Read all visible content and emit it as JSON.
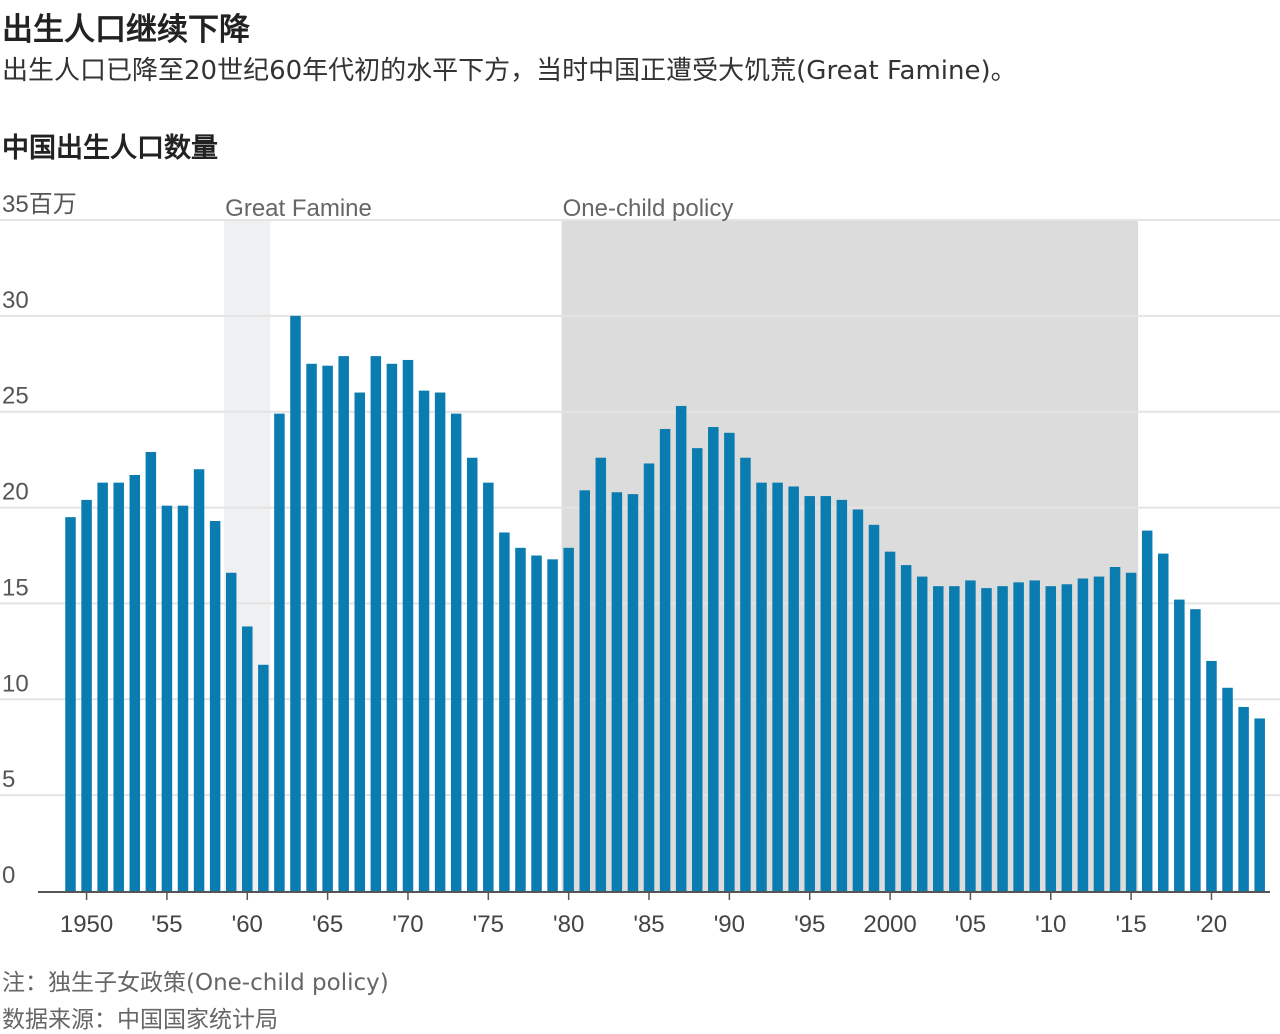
{
  "header": {
    "title": "出生人口继续下降",
    "subtitle": "出生人口已降至20世纪60年代初的水平下方，当时中国正遭受大饥荒(Great Famine)。"
  },
  "chart_data": {
    "type": "bar",
    "title": "中国出生人口数量",
    "ylabel": "35百万",
    "ylim": [
      0,
      35
    ],
    "yticks": [
      0,
      5,
      10,
      15,
      20,
      25,
      30,
      35
    ],
    "ytick_labels": [
      "0",
      "5",
      "10",
      "15",
      "20",
      "25",
      "30",
      "35百万"
    ],
    "xtick_years": [
      1950,
      1955,
      1960,
      1965,
      1970,
      1975,
      1980,
      1985,
      1990,
      1995,
      2000,
      2005,
      2010,
      2015,
      2020
    ],
    "xtick_labels": [
      "1950",
      "'55",
      "'60",
      "'65",
      "'70",
      "'75",
      "'80",
      "'85",
      "'90",
      "'95",
      "2000",
      "'05",
      "'10",
      "'15",
      "'20"
    ],
    "annotations": [
      {
        "label": "Great Famine",
        "start": 1959,
        "end": 1961,
        "color": "#eef0f2"
      },
      {
        "label": "One-child policy",
        "start": 1980,
        "end": 2015,
        "color": "#dcdcdc"
      }
    ],
    "series": [
      {
        "name": "出生人口",
        "color": "#0a7cb0",
        "years": [
          1949,
          1950,
          1951,
          1952,
          1953,
          1954,
          1955,
          1956,
          1957,
          1958,
          1959,
          1960,
          1961,
          1962,
          1963,
          1964,
          1965,
          1966,
          1967,
          1968,
          1969,
          1970,
          1971,
          1972,
          1973,
          1974,
          1975,
          1976,
          1977,
          1978,
          1979,
          1980,
          1981,
          1982,
          1983,
          1984,
          1985,
          1986,
          1987,
          1988,
          1989,
          1990,
          1991,
          1992,
          1993,
          1994,
          1995,
          1996,
          1997,
          1998,
          1999,
          2000,
          2001,
          2002,
          2003,
          2004,
          2005,
          2006,
          2007,
          2008,
          2009,
          2010,
          2011,
          2012,
          2013,
          2014,
          2015,
          2016,
          2017,
          2018,
          2019,
          2020,
          2021,
          2022,
          2023
        ],
        "values": [
          19.5,
          20.4,
          21.3,
          21.3,
          21.7,
          22.9,
          20.1,
          20.1,
          22.0,
          19.3,
          16.6,
          13.8,
          11.8,
          24.9,
          30.0,
          27.5,
          27.4,
          27.9,
          26.0,
          27.9,
          27.5,
          27.7,
          26.1,
          26.0,
          24.9,
          22.6,
          21.3,
          18.7,
          17.9,
          17.5,
          17.3,
          17.9,
          20.9,
          22.6,
          20.8,
          20.7,
          22.3,
          24.1,
          25.3,
          23.1,
          24.2,
          23.9,
          22.6,
          21.3,
          21.3,
          21.1,
          20.6,
          20.6,
          20.4,
          19.9,
          19.1,
          17.7,
          17.0,
          16.4,
          15.9,
          15.9,
          16.2,
          15.8,
          15.9,
          16.1,
          16.2,
          15.9,
          16.0,
          16.3,
          16.4,
          16.9,
          16.6,
          18.8,
          17.6,
          15.2,
          14.7,
          12.0,
          10.6,
          9.6,
          9.0
        ]
      }
    ]
  },
  "footer": {
    "note": "注：独生子女政策(One-child policy)",
    "source": "数据来源：中国国家统计局"
  }
}
